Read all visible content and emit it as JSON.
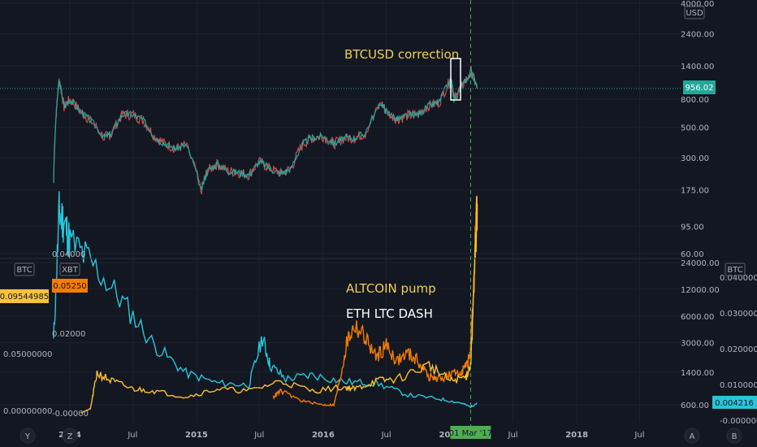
{
  "chart_data": {
    "type": "line",
    "panels": [
      {
        "name": "BTCUSD",
        "currency_label": "USD",
        "scale": "log",
        "ylim": [
          60,
          4000
        ],
        "right_ticks": [
          "4000.00",
          "2400.00",
          "1400.00",
          "800.00",
          "500.00",
          "300.00",
          "175.00",
          "95.00",
          "60.00"
        ],
        "right_tick_values": [
          4000,
          2400,
          1400,
          800,
          500,
          300,
          175,
          95,
          60
        ],
        "last_price": "956.02",
        "last_value": 956.02,
        "annotation": "BTCUSD correction",
        "series": [
          {
            "color": "#26a69a",
            "x": [
              "2013-11-15",
              "2013-12-01",
              "2013-12-15",
              "2014-01-01",
              "2014-02-01",
              "2014-03-01",
              "2014-04-10",
              "2014-05-01",
              "2014-06-01",
              "2014-07-01",
              "2014-08-01",
              "2014-09-01",
              "2014-10-01",
              "2014-11-01",
              "2014-12-01",
              "2015-01-14",
              "2015-02-01",
              "2015-03-01",
              "2015-04-01",
              "2015-05-01",
              "2015-06-01",
              "2015-07-01",
              "2015-08-01",
              "2015-09-01",
              "2015-10-01",
              "2015-11-04",
              "2015-12-01",
              "2016-01-01",
              "2016-02-01",
              "2016-03-01",
              "2016-04-01",
              "2016-05-01",
              "2016-06-17",
              "2016-07-01",
              "2016-08-01",
              "2016-09-01",
              "2016-10-01",
              "2016-11-01",
              "2016-12-01",
              "2017-01-04",
              "2017-01-12",
              "2017-02-01",
              "2017-03-03",
              "2017-03-20"
            ],
            "y": [
              200,
              1100,
              700,
              800,
              650,
              560,
              420,
              450,
              620,
              620,
              560,
              430,
              380,
              350,
              370,
              170,
              240,
              270,
              240,
              235,
              225,
              280,
              250,
              230,
              250,
              380,
              420,
              430,
              380,
              415,
              420,
              450,
              750,
              650,
              570,
              610,
              620,
              720,
              760,
              1120,
              800,
              970,
              1260,
              956
            ]
          }
        ]
      },
      {
        "name": "Altcoins vs BTC",
        "left_currency": "BTC",
        "right_currency": "BTC",
        "inner_currency": "XBT",
        "left_ticks": [
          "0.05000000",
          "0.00000000"
        ],
        "left_tick_values": [
          0.05,
          0.0
        ],
        "left_badge": "0.09544985",
        "inner_ticks": [
          "0.04000",
          "0.02000",
          "-0.00000"
        ],
        "inner_tick_values": [
          0.04,
          0.02,
          0.0
        ],
        "inner_badge": "0.05250",
        "right_log_ticks": [
          "24000.00",
          "12000.00",
          "6000.00",
          "3000.00",
          "1400.00",
          "600.00"
        ],
        "right_log_values": [
          24000,
          12000,
          6000,
          3000,
          1400,
          600
        ],
        "far_right_ticks": [
          "0.040000",
          "0.030000",
          "0.020000",
          "0.010000",
          "-0.000000"
        ],
        "far_right_values": [
          0.04,
          0.03,
          0.02,
          0.01,
          0.0
        ],
        "far_right_badge": "0.004216",
        "annotation_1": "ALTCOIN pump",
        "annotation_2": "ETH LTC DASH",
        "series": [
          {
            "color": "#26c6da",
            "x": [
              "2013-11-15",
              "2013-12-01",
              "2013-12-15",
              "2014-01-01",
              "2014-03-01",
              "2014-06-01",
              "2014-09-01",
              "2014-12-01",
              "2015-03-01",
              "2015-06-01",
              "2015-07-10",
              "2015-08-01",
              "2015-09-15",
              "2015-12-01",
              "2016-03-01",
              "2016-06-01",
              "2016-09-01",
              "2016-12-01",
              "2017-02-01",
              "2017-03-01",
              "2017-03-20"
            ],
            "y": [
              0.018,
              0.05,
              0.048,
              0.043,
              0.038,
              0.028,
              0.017,
              0.01,
              0.0075,
              0.007,
              0.019,
              0.012,
              0.0085,
              0.0095,
              0.0078,
              0.0075,
              0.0045,
              0.0035,
              0.0025,
              0.0015,
              0.0025
            ]
          },
          {
            "color": "#f57c00",
            "x": [
              "2015-08-10",
              "2015-09-01",
              "2015-11-01",
              "2016-01-01",
              "2016-02-01",
              "2016-02-20",
              "2016-03-10",
              "2016-04-01",
              "2016-05-01",
              "2016-06-01",
              "2016-07-01",
              "2016-08-01",
              "2016-09-01",
              "2016-10-01",
              "2016-11-01",
              "2016-12-01",
              "2017-01-01",
              "2017-02-01",
              "2017-02-20",
              "2017-03-01",
              "2017-03-10",
              "2017-03-15",
              "2017-03-20"
            ],
            "y": [
              0.004,
              0.0055,
              0.003,
              0.002,
              0.002,
              0.009,
              0.018,
              0.022,
              0.019,
              0.014,
              0.017,
              0.013,
              0.015,
              0.013,
              0.009,
              0.0085,
              0.0095,
              0.0105,
              0.012,
              0.016,
              0.03,
              0.045,
              0.0525
            ]
          },
          {
            "color": "#fbc02d",
            "x": [
              "2014-02-01",
              "2014-03-01",
              "2014-03-20",
              "2014-05-01",
              "2014-07-01",
              "2014-09-01",
              "2014-12-01",
              "2015-03-01",
              "2015-06-01",
              "2015-09-01",
              "2015-12-01",
              "2016-03-01",
              "2016-04-01",
              "2016-06-01",
              "2016-08-01",
              "2016-11-01",
              "2017-01-01",
              "2017-02-15",
              "2017-03-01",
              "2017-03-10",
              "2017-03-20"
            ],
            "y": [
              0.0,
              0.001,
              0.01,
              0.008,
              0.006,
              0.0055,
              0.004,
              0.006,
              0.0055,
              0.008,
              0.0055,
              0.0065,
              0.006,
              0.008,
              0.0085,
              0.012,
              0.008,
              0.009,
              0.012,
              0.03,
              0.0525
            ]
          }
        ]
      }
    ],
    "x_ticks": [
      "2014",
      "Jul",
      "2015",
      "Jul",
      "2016",
      "Jul",
      "Jul",
      "2018",
      "Jul"
    ],
    "x_tick_dates": [
      "2014-01-01",
      "2014-07-01",
      "2015-01-01",
      "2015-07-01",
      "2016-01-01",
      "2016-07-01",
      "2017-07-01",
      "2018-01-01",
      "2018-07-01"
    ],
    "x_range": [
      "2013-11-01",
      "2018-11-01"
    ],
    "crosshair_date": "2017-03-01",
    "crosshair_label": "01 Mar '17",
    "partial_tick": "201",
    "corner_labels": [
      "Y",
      "Z",
      "A",
      "B"
    ],
    "grid": true
  }
}
